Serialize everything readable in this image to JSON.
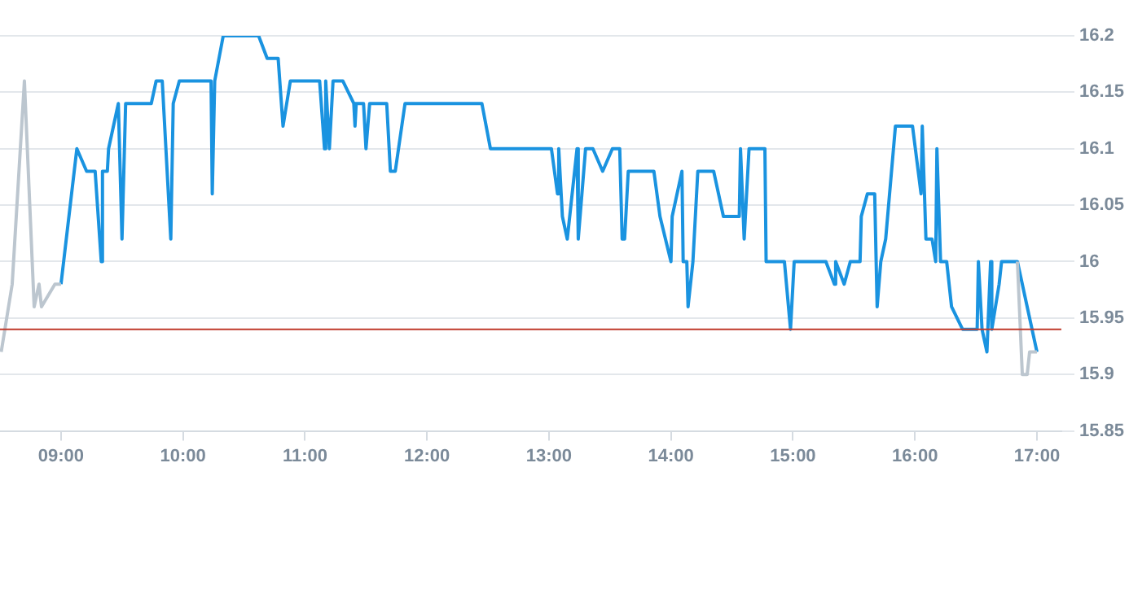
{
  "chart_data": {
    "type": "line",
    "xlim": [
      8.5,
      17.2
    ],
    "ylim": [
      15.85,
      16.2
    ],
    "xticks": [
      {
        "value": 9,
        "label": "09:00"
      },
      {
        "value": 10,
        "label": "10:00"
      },
      {
        "value": 11,
        "label": "11:00"
      },
      {
        "value": 12,
        "label": "12:00"
      },
      {
        "value": 13,
        "label": "13:00"
      },
      {
        "value": 14,
        "label": "14:00"
      },
      {
        "value": 15,
        "label": "15:00"
      },
      {
        "value": 16,
        "label": "16:00"
      },
      {
        "value": 17,
        "label": "17:00"
      }
    ],
    "yticks": [
      15.85,
      15.9,
      15.95,
      16,
      16.05,
      16.1,
      16.15,
      16.2
    ],
    "grid": "y",
    "legend": false,
    "marker": "none",
    "line_style": "solid",
    "ref_lines": [
      {
        "axis": "y",
        "value": 15.94,
        "color": "#c0392b"
      }
    ],
    "series": [
      {
        "color": "#bcc6cf",
        "x": [
          8.51,
          8.6,
          8.7,
          8.78,
          8.82,
          8.84,
          8.95,
          9.0
        ],
        "values": [
          15.92,
          15.98,
          16.16,
          15.96,
          15.98,
          15.96,
          15.98,
          15.98
        ]
      },
      {
        "color": "#bcc6cf",
        "x": [
          16.84,
          16.88,
          16.92,
          16.94,
          17.0
        ],
        "values": [
          16.0,
          15.9,
          15.9,
          15.92,
          15.92
        ]
      },
      {
        "color": "#1a93e0",
        "x": [
          9.0,
          9.13,
          9.21,
          9.28,
          9.33,
          9.34,
          9.38,
          9.39,
          9.47,
          9.5,
          9.53,
          9.74,
          9.78,
          9.83,
          9.9,
          9.92,
          9.97,
          10.23,
          10.24,
          10.26,
          10.33,
          10.62,
          10.69,
          10.78,
          10.82,
          10.88,
          11.12,
          11.16,
          11.17,
          11.2,
          11.23,
          11.31,
          11.4,
          11.41,
          11.42,
          11.48,
          11.5,
          11.53,
          11.67,
          11.7,
          11.74,
          11.82,
          12.45,
          12.52,
          13.02,
          13.07,
          13.08,
          13.11,
          13.15,
          13.23,
          13.24,
          13.3,
          13.36,
          13.44,
          13.52,
          13.58,
          13.6,
          13.62,
          13.65,
          13.86,
          13.91,
          14.0,
          14.01,
          14.09,
          14.1,
          14.13,
          14.14,
          14.18,
          14.22,
          14.35,
          14.43,
          14.56,
          14.57,
          14.6,
          14.64,
          14.77,
          14.78,
          14.93,
          14.98,
          15.01,
          15.27,
          15.34,
          15.35,
          15.42,
          15.47,
          15.55,
          15.56,
          15.61,
          15.67,
          15.69,
          15.72,
          15.76,
          15.84,
          15.98,
          16.05,
          16.06,
          16.09,
          16.14,
          16.17,
          16.18,
          16.21,
          16.26,
          16.3,
          16.39,
          16.51,
          16.52,
          16.55,
          16.59,
          16.62,
          16.63,
          16.69,
          16.71,
          16.84,
          17.0
        ],
        "values": [
          15.98,
          16.1,
          16.08,
          16.08,
          16.0,
          16.08,
          16.08,
          16.1,
          16.14,
          16.02,
          16.14,
          16.14,
          16.16,
          16.16,
          16.02,
          16.14,
          16.16,
          16.16,
          16.06,
          16.16,
          16.2,
          16.2,
          16.18,
          16.18,
          16.12,
          16.16,
          16.16,
          16.1,
          16.16,
          16.1,
          16.16,
          16.16,
          16.14,
          16.12,
          16.14,
          16.14,
          16.1,
          16.14,
          16.14,
          16.08,
          16.08,
          16.14,
          16.14,
          16.1,
          16.1,
          16.06,
          16.1,
          16.04,
          16.02,
          16.1,
          16.02,
          16.1,
          16.1,
          16.08,
          16.1,
          16.1,
          16.02,
          16.02,
          16.08,
          16.08,
          16.04,
          16.0,
          16.04,
          16.08,
          16.0,
          16.0,
          15.96,
          16.0,
          16.08,
          16.08,
          16.04,
          16.04,
          16.1,
          16.02,
          16.1,
          16.1,
          16.0,
          16.0,
          15.94,
          16.0,
          16.0,
          15.98,
          16.0,
          15.98,
          16.0,
          16.0,
          16.04,
          16.06,
          16.06,
          15.96,
          16.0,
          16.02,
          16.12,
          16.12,
          16.06,
          16.12,
          16.02,
          16.02,
          16.0,
          16.1,
          16.0,
          16.0,
          15.96,
          15.94,
          15.94,
          16.0,
          15.94,
          15.92,
          16.0,
          15.94,
          15.98,
          16.0,
          16.0,
          15.92
        ]
      }
    ]
  }
}
